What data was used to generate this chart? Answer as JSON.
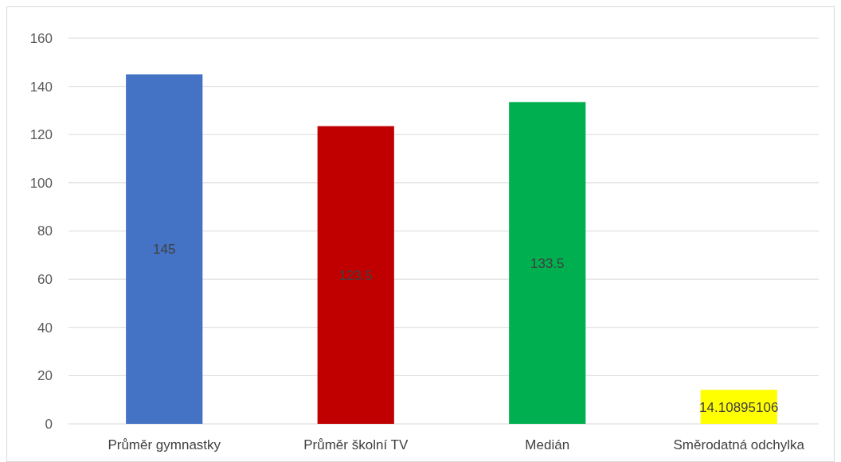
{
  "chart_data": {
    "type": "bar",
    "categories": [
      "Průměr gymnastky",
      "Průměr školní TV",
      "Medián",
      "Směrodatná odchylka"
    ],
    "values": [
      145,
      123.5,
      133.5,
      14.10895106
    ],
    "colors": [
      "#4472c4",
      "#c00000",
      "#00b050",
      "#ffff00"
    ],
    "ylim": [
      0,
      160
    ],
    "yticks": [
      0,
      20,
      40,
      60,
      80,
      100,
      120,
      140,
      160
    ],
    "grid": "y",
    "data_labels": true
  }
}
